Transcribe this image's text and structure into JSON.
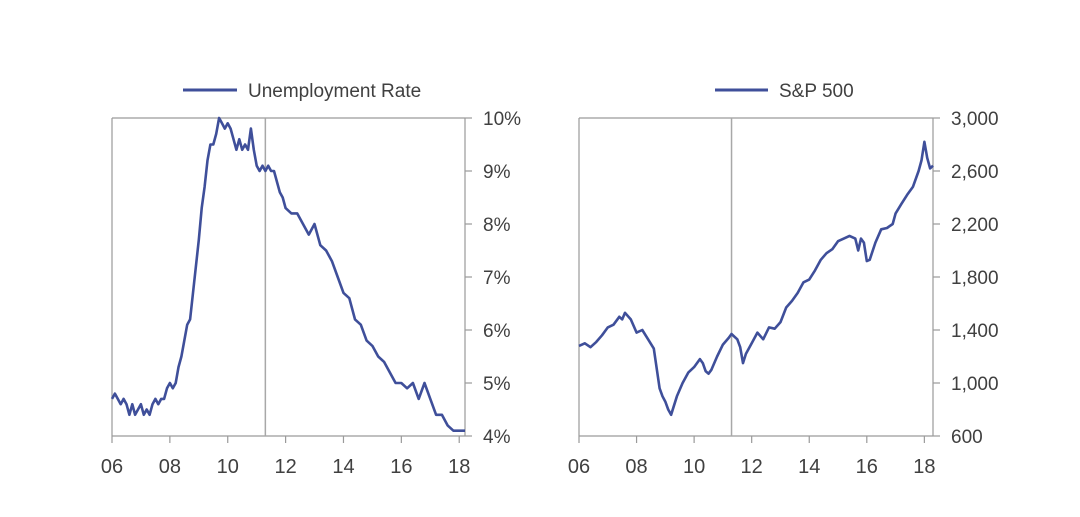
{
  "colors": {
    "line": "#3f4f9a",
    "axis": "#9a9a9a",
    "marker": "#a8a8a8",
    "text": "#404040"
  },
  "chart_data": [
    {
      "type": "line",
      "legend": "Unemployment Rate",
      "legend_position": "top",
      "ytick_labels": [
        "10%",
        "9%",
        "8%",
        "7%",
        "6%",
        "5%",
        "4%"
      ],
      "ytick_values": [
        10,
        9,
        8,
        7,
        6,
        5,
        4
      ],
      "xtick_labels": [
        "06",
        "08",
        "10",
        "12",
        "14",
        "16",
        "18"
      ],
      "xtick_values": [
        2006,
        2008,
        2010,
        2012,
        2014,
        2016,
        2018
      ],
      "xlim": [
        2006,
        2018.2
      ],
      "ylim": [
        4,
        10
      ],
      "y_axis_side": "right",
      "vertical_marker_x": 2011.3,
      "grid": false,
      "series": [
        {
          "x": [
            2006.0,
            2006.1,
            2006.2,
            2006.3,
            2006.4,
            2006.5,
            2006.6,
            2006.7,
            2006.8,
            2006.9,
            2007.0,
            2007.1,
            2007.2,
            2007.3,
            2007.4,
            2007.5,
            2007.6,
            2007.7,
            2007.8,
            2007.9,
            2008.0,
            2008.1,
            2008.2,
            2008.3,
            2008.4,
            2008.5,
            2008.6,
            2008.7,
            2008.8,
            2008.9,
            2009.0,
            2009.1,
            2009.2,
            2009.3,
            2009.4,
            2009.5,
            2009.6,
            2009.7,
            2009.8,
            2009.9,
            2010.0,
            2010.1,
            2010.2,
            2010.3,
            2010.4,
            2010.5,
            2010.6,
            2010.7,
            2010.8,
            2010.9,
            2011.0,
            2011.1,
            2011.2,
            2011.3,
            2011.4,
            2011.5,
            2011.6,
            2011.7,
            2011.8,
            2011.9,
            2012.0,
            2012.2,
            2012.4,
            2012.6,
            2012.8,
            2013.0,
            2013.2,
            2013.4,
            2013.6,
            2013.8,
            2014.0,
            2014.2,
            2014.4,
            2014.6,
            2014.8,
            2015.0,
            2015.2,
            2015.4,
            2015.6,
            2015.8,
            2016.0,
            2016.2,
            2016.4,
            2016.6,
            2016.8,
            2017.0,
            2017.2,
            2017.4,
            2017.6,
            2017.8,
            2018.0,
            2018.1,
            2018.2
          ],
          "values": [
            4.7,
            4.8,
            4.7,
            4.6,
            4.7,
            4.6,
            4.4,
            4.6,
            4.4,
            4.5,
            4.6,
            4.4,
            4.5,
            4.4,
            4.6,
            4.7,
            4.6,
            4.7,
            4.7,
            4.9,
            5.0,
            4.9,
            5.0,
            5.3,
            5.5,
            5.8,
            6.1,
            6.2,
            6.7,
            7.2,
            7.7,
            8.3,
            8.7,
            9.2,
            9.5,
            9.5,
            9.7,
            10.0,
            9.9,
            9.8,
            9.9,
            9.8,
            9.6,
            9.4,
            9.6,
            9.4,
            9.5,
            9.4,
            9.8,
            9.4,
            9.1,
            9.0,
            9.1,
            9.0,
            9.1,
            9.0,
            9.0,
            8.8,
            8.6,
            8.5,
            8.3,
            8.2,
            8.2,
            8.0,
            7.8,
            8.0,
            7.6,
            7.5,
            7.3,
            7.0,
            6.7,
            6.6,
            6.2,
            6.1,
            5.8,
            5.7,
            5.5,
            5.4,
            5.2,
            5.0,
            5.0,
            4.9,
            5.0,
            4.7,
            5.0,
            4.7,
            4.4,
            4.4,
            4.2,
            4.1,
            4.1,
            4.1,
            4.1
          ]
        }
      ]
    },
    {
      "type": "line",
      "legend": "S&P 500",
      "legend_position": "top",
      "ytick_labels": [
        "3,000",
        "2,600",
        "2,200",
        "1,800",
        "1,400",
        "1,000",
        "600"
      ],
      "ytick_values": [
        3000,
        2600,
        2200,
        1800,
        1400,
        1000,
        600
      ],
      "xtick_labels": [
        "06",
        "08",
        "10",
        "12",
        "14",
        "16",
        "18"
      ],
      "xtick_values": [
        2006,
        2008,
        2010,
        2012,
        2014,
        2016,
        2018
      ],
      "xlim": [
        2006,
        2018.3
      ],
      "ylim": [
        600,
        3000
      ],
      "y_axis_side": "right",
      "vertical_marker_x": 2011.3,
      "grid": false,
      "series": [
        {
          "x": [
            2006.0,
            2006.2,
            2006.4,
            2006.6,
            2006.8,
            2007.0,
            2007.2,
            2007.4,
            2007.5,
            2007.6,
            2007.8,
            2008.0,
            2008.2,
            2008.4,
            2008.6,
            2008.8,
            2008.9,
            2009.0,
            2009.1,
            2009.2,
            2009.4,
            2009.6,
            2009.8,
            2010.0,
            2010.2,
            2010.3,
            2010.4,
            2010.5,
            2010.6,
            2010.8,
            2011.0,
            2011.2,
            2011.3,
            2011.5,
            2011.6,
            2011.7,
            2011.8,
            2012.0,
            2012.2,
            2012.4,
            2012.6,
            2012.8,
            2013.0,
            2013.2,
            2013.4,
            2013.6,
            2013.8,
            2014.0,
            2014.2,
            2014.4,
            2014.6,
            2014.8,
            2015.0,
            2015.2,
            2015.4,
            2015.6,
            2015.7,
            2015.8,
            2015.9,
            2016.0,
            2016.1,
            2016.3,
            2016.5,
            2016.7,
            2016.9,
            2017.0,
            2017.2,
            2017.4,
            2017.6,
            2017.8,
            2017.9,
            2018.0,
            2018.1,
            2018.2,
            2018.3
          ],
          "values": [
            1280,
            1300,
            1270,
            1310,
            1360,
            1420,
            1440,
            1500,
            1480,
            1530,
            1480,
            1380,
            1400,
            1330,
            1260,
            960,
            900,
            860,
            800,
            760,
            900,
            1000,
            1080,
            1120,
            1180,
            1150,
            1090,
            1070,
            1100,
            1200,
            1290,
            1340,
            1370,
            1330,
            1270,
            1150,
            1220,
            1300,
            1380,
            1330,
            1420,
            1410,
            1460,
            1570,
            1620,
            1680,
            1760,
            1780,
            1850,
            1930,
            1980,
            2010,
            2070,
            2090,
            2110,
            2090,
            2000,
            2090,
            2060,
            1920,
            1930,
            2060,
            2160,
            2170,
            2200,
            2280,
            2350,
            2420,
            2480,
            2600,
            2680,
            2820,
            2700,
            2620,
            2640
          ]
        }
      ]
    }
  ]
}
